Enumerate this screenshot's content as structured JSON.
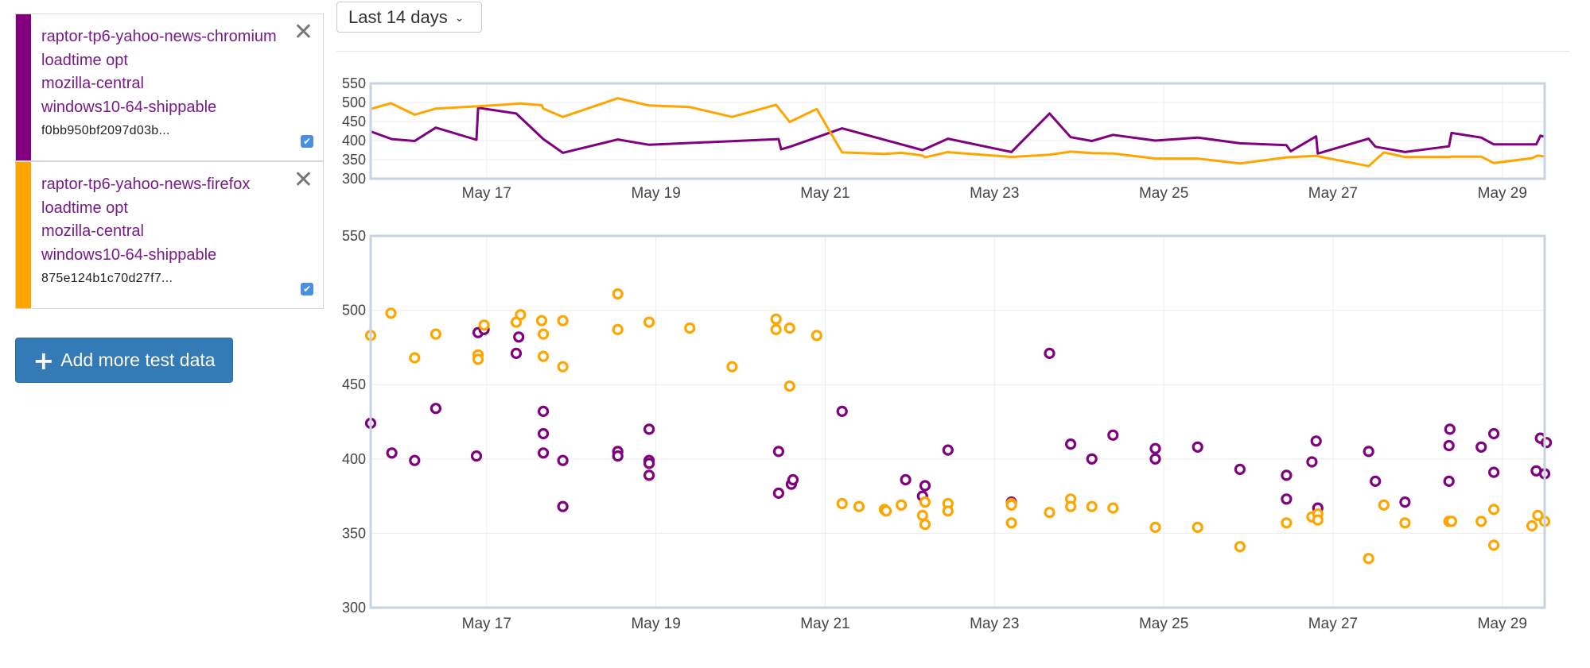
{
  "range_selector": {
    "value": "Last 14 days"
  },
  "add_button": {
    "label": "Add more test data"
  },
  "legend": [
    {
      "color": "#800080",
      "lines": [
        "raptor-tp6-yahoo-news-chromium",
        "loadtime opt",
        "mozilla-central",
        "windows10-64-shippable"
      ],
      "revision": "f0bb950bf2097d03b..."
    },
    {
      "color": "#FFA500",
      "lines": [
        "raptor-tp6-yahoo-news-firefox",
        "loadtime opt",
        "mozilla-central",
        "windows10-64-shippable"
      ],
      "revision": "875e124b1c70d27f7..."
    }
  ],
  "chart_data": [
    {
      "type": "line",
      "x_ticks": [
        17,
        19,
        21,
        23,
        25,
        27,
        29
      ],
      "x_tick_labels": [
        "May 17",
        "May 19",
        "May 21",
        "May 23",
        "May 25",
        "May 27",
        "May 29"
      ],
      "y_ticks": [
        300,
        350,
        400,
        450,
        500,
        550
      ],
      "xlim": [
        15.63,
        29.5
      ],
      "ylim": [
        300,
        550
      ],
      "grid": true,
      "series": [
        {
          "color": "#800080",
          "points": [
            [
              15.63,
              424
            ],
            [
              15.88,
              404
            ],
            [
              16.15,
              399
            ],
            [
              16.4,
              434
            ],
            [
              16.88,
              402
            ],
            [
              16.9,
              486
            ],
            [
              17.35,
              471
            ],
            [
              17.67,
              404
            ],
            [
              17.9,
              368
            ],
            [
              18.55,
              403
            ],
            [
              18.92,
              389
            ],
            [
              20.45,
              404
            ],
            [
              20.48,
              377
            ],
            [
              20.6,
              385
            ],
            [
              21.2,
              432
            ],
            [
              22.15,
              375
            ],
            [
              22.45,
              405
            ],
            [
              23.2,
              370
            ],
            [
              23.65,
              471
            ],
            [
              23.9,
              409
            ],
            [
              24.15,
              399
            ],
            [
              24.4,
              415
            ],
            [
              24.9,
              400
            ],
            [
              25.4,
              408
            ],
            [
              25.9,
              393
            ],
            [
              26.45,
              388
            ],
            [
              26.5,
              372
            ],
            [
              26.8,
              411
            ],
            [
              26.82,
              366
            ],
            [
              27.42,
              405
            ],
            [
              27.5,
              384
            ],
            [
              27.85,
              370
            ],
            [
              28.37,
              385
            ],
            [
              28.4,
              420
            ],
            [
              28.75,
              408
            ],
            [
              28.9,
              390
            ],
            [
              29.4,
              390
            ],
            [
              29.45,
              413
            ],
            [
              29.5,
              410
            ]
          ]
        },
        {
          "color": "#FFA500",
          "points": [
            [
              15.63,
              483
            ],
            [
              15.87,
              498
            ],
            [
              16.15,
              468
            ],
            [
              16.4,
              484
            ],
            [
              16.9,
              490
            ],
            [
              17.4,
              497
            ],
            [
              17.65,
              493
            ],
            [
              17.67,
              484
            ],
            [
              17.9,
              462
            ],
            [
              18.55,
              511
            ],
            [
              18.92,
              492
            ],
            [
              19.4,
              488
            ],
            [
              19.9,
              462
            ],
            [
              20.42,
              494
            ],
            [
              20.58,
              449
            ],
            [
              20.9,
              483
            ],
            [
              21.2,
              369
            ],
            [
              21.7,
              365
            ],
            [
              21.9,
              368
            ],
            [
              22.15,
              361
            ],
            [
              22.18,
              356
            ],
            [
              22.45,
              370
            ],
            [
              22.48,
              369
            ],
            [
              23.2,
              357
            ],
            [
              23.65,
              363
            ],
            [
              23.9,
              371
            ],
            [
              24.15,
              367
            ],
            [
              24.4,
              366
            ],
            [
              24.9,
              353
            ],
            [
              25.4,
              353
            ],
            [
              25.9,
              340
            ],
            [
              26.45,
              356
            ],
            [
              26.8,
              360
            ],
            [
              26.82,
              359
            ],
            [
              27.42,
              333
            ],
            [
              27.6,
              369
            ],
            [
              27.85,
              357
            ],
            [
              28.37,
              357
            ],
            [
              28.4,
              358
            ],
            [
              28.75,
              358
            ],
            [
              28.9,
              341
            ],
            [
              29.35,
              354
            ],
            [
              29.42,
              361
            ],
            [
              29.5,
              358
            ]
          ]
        }
      ]
    },
    {
      "type": "scatter",
      "x_ticks": [
        17,
        19,
        21,
        23,
        25,
        27,
        29
      ],
      "x_tick_labels": [
        "May 17",
        "May 19",
        "May 21",
        "May 23",
        "May 25",
        "May 27",
        "May 29"
      ],
      "y_ticks": [
        300,
        350,
        400,
        450,
        500,
        550
      ],
      "xlim": [
        15.63,
        29.5
      ],
      "ylim": [
        300,
        550
      ],
      "grid": true,
      "series": [
        {
          "color": "#800080",
          "points": [
            [
              15.63,
              424
            ],
            [
              15.88,
              404
            ],
            [
              16.15,
              399
            ],
            [
              16.4,
              434
            ],
            [
              16.88,
              402
            ],
            [
              16.9,
              485
            ],
            [
              16.97,
              487
            ],
            [
              17.35,
              471
            ],
            [
              17.38,
              482
            ],
            [
              17.67,
              432
            ],
            [
              17.67,
              417
            ],
            [
              17.67,
              404
            ],
            [
              17.9,
              399
            ],
            [
              17.9,
              368
            ],
            [
              18.55,
              405
            ],
            [
              18.55,
              402
            ],
            [
              18.92,
              420
            ],
            [
              18.92,
              399
            ],
            [
              18.92,
              397
            ],
            [
              18.92,
              389
            ],
            [
              20.45,
              405
            ],
            [
              20.45,
              377
            ],
            [
              20.6,
              383
            ],
            [
              20.62,
              386
            ],
            [
              21.2,
              432
            ],
            [
              21.95,
              386
            ],
            [
              22.18,
              382
            ],
            [
              22.15,
              375
            ],
            [
              22.45,
              406
            ],
            [
              23.2,
              371
            ],
            [
              23.65,
              471
            ],
            [
              23.9,
              410
            ],
            [
              24.15,
              400
            ],
            [
              24.4,
              416
            ],
            [
              24.9,
              407
            ],
            [
              24.9,
              400
            ],
            [
              25.4,
              408
            ],
            [
              25.9,
              393
            ],
            [
              26.45,
              389
            ],
            [
              26.45,
              373
            ],
            [
              26.75,
              398
            ],
            [
              26.8,
              412
            ],
            [
              26.82,
              367
            ],
            [
              27.42,
              405
            ],
            [
              27.5,
              385
            ],
            [
              27.85,
              371
            ],
            [
              28.37,
              409
            ],
            [
              28.38,
              420
            ],
            [
              28.37,
              385
            ],
            [
              28.75,
              408
            ],
            [
              28.9,
              417
            ],
            [
              28.9,
              391
            ],
            [
              29.4,
              392
            ],
            [
              29.45,
              414
            ],
            [
              29.5,
              390
            ],
            [
              29.52,
              411
            ]
          ]
        },
        {
          "color": "#FFA500",
          "points": [
            [
              15.63,
              483
            ],
            [
              15.87,
              498
            ],
            [
              16.15,
              468
            ],
            [
              16.4,
              484
            ],
            [
              16.9,
              470
            ],
            [
              16.9,
              467
            ],
            [
              16.97,
              490
            ],
            [
              17.35,
              492
            ],
            [
              17.4,
              497
            ],
            [
              17.65,
              493
            ],
            [
              17.67,
              484
            ],
            [
              17.67,
              469
            ],
            [
              17.9,
              493
            ],
            [
              17.9,
              462
            ],
            [
              18.55,
              511
            ],
            [
              18.55,
              487
            ],
            [
              18.92,
              492
            ],
            [
              19.4,
              488
            ],
            [
              19.9,
              462
            ],
            [
              20.42,
              494
            ],
            [
              20.42,
              487
            ],
            [
              20.58,
              488
            ],
            [
              20.58,
              449
            ],
            [
              20.9,
              483
            ],
            [
              21.2,
              370
            ],
            [
              21.4,
              368
            ],
            [
              21.7,
              366
            ],
            [
              21.72,
              365
            ],
            [
              21.9,
              369
            ],
            [
              22.15,
              362
            ],
            [
              22.18,
              371
            ],
            [
              22.18,
              356
            ],
            [
              22.45,
              370
            ],
            [
              22.45,
              365
            ],
            [
              23.2,
              370
            ],
            [
              23.2,
              369
            ],
            [
              23.2,
              357
            ],
            [
              23.65,
              364
            ],
            [
              23.9,
              373
            ],
            [
              23.9,
              368
            ],
            [
              24.15,
              368
            ],
            [
              24.4,
              367
            ],
            [
              24.9,
              354
            ],
            [
              25.4,
              354
            ],
            [
              25.9,
              341
            ],
            [
              26.45,
              357
            ],
            [
              26.75,
              361
            ],
            [
              26.82,
              363
            ],
            [
              26.82,
              359
            ],
            [
              27.42,
              333
            ],
            [
              27.6,
              369
            ],
            [
              27.85,
              357
            ],
            [
              28.37,
              358
            ],
            [
              28.4,
              358
            ],
            [
              28.75,
              358
            ],
            [
              28.9,
              366
            ],
            [
              28.9,
              342
            ],
            [
              29.35,
              355
            ],
            [
              29.42,
              362
            ],
            [
              29.5,
              358
            ]
          ]
        }
      ]
    }
  ]
}
